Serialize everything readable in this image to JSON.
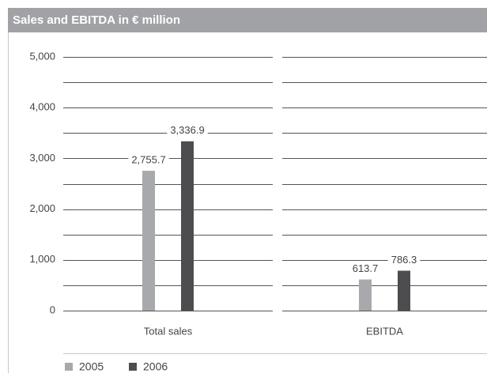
{
  "chart_data": {
    "type": "bar",
    "title": "Sales and EBITDA in € million",
    "categories": [
      "Total sales",
      "EBITDA"
    ],
    "series": [
      {
        "name": "2005",
        "color": "#a7a9ac",
        "values": [
          2755.7,
          613.7
        ],
        "value_labels": [
          "2,755.7",
          "613.7"
        ]
      },
      {
        "name": "2006",
        "color": "#4d4d4f",
        "values": [
          3336.9,
          786.3
        ],
        "value_labels": [
          "3,336.9",
          "786.3"
        ]
      }
    ],
    "ylim": [
      0,
      5000
    ],
    "yticks": [
      0,
      {
        "value": 1000,
        "label": "1,000"
      },
      {
        "value": 2000,
        "label": "2,000"
      },
      {
        "value": 3000,
        "label": "3,000"
      },
      {
        "value": 4000,
        "label": "4,000"
      },
      {
        "value": 5000,
        "label": "5,000"
      }
    ],
    "yminor": [
      500,
      1500,
      2500,
      3500,
      4500
    ],
    "grid": true,
    "legend": "bottom-left"
  }
}
